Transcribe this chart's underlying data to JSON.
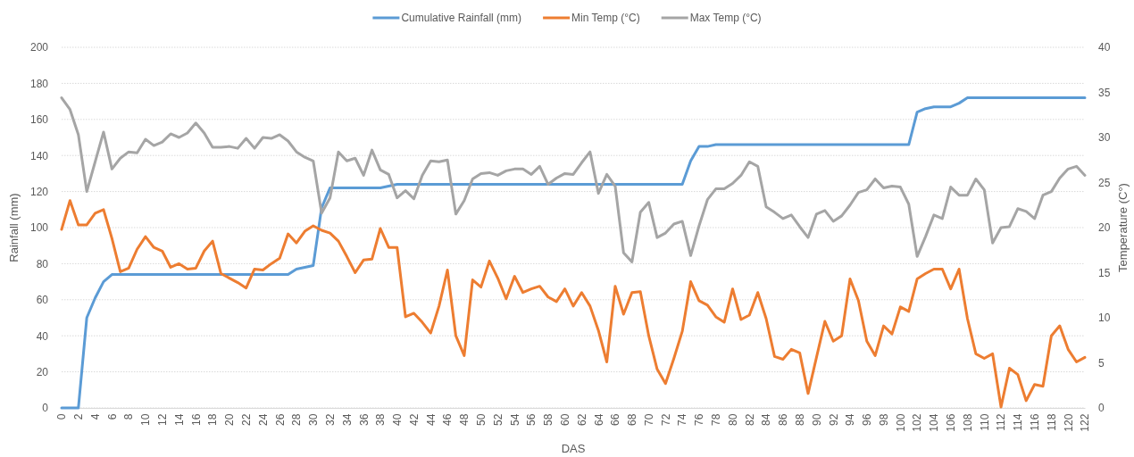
{
  "chart_data": {
    "type": "line",
    "xlabel": "DAS",
    "ylabel": "Rainfall (mm)",
    "y2label": "Temperature (C°)",
    "x": [
      0,
      1,
      2,
      3,
      4,
      5,
      6,
      7,
      8,
      9,
      10,
      11,
      12,
      13,
      14,
      15,
      16,
      17,
      18,
      19,
      20,
      21,
      22,
      23,
      24,
      25,
      26,
      27,
      28,
      29,
      30,
      31,
      32,
      33,
      34,
      35,
      36,
      37,
      38,
      39,
      40,
      41,
      42,
      43,
      44,
      45,
      46,
      47,
      48,
      49,
      50,
      51,
      52,
      53,
      54,
      55,
      56,
      57,
      58,
      59,
      60,
      61,
      62,
      63,
      64,
      65,
      66,
      67,
      68,
      69,
      70,
      71,
      72,
      73,
      74,
      75,
      76,
      77,
      78,
      79,
      80,
      81,
      82,
      83,
      84,
      85,
      86,
      87,
      88,
      89,
      90,
      91,
      92,
      93,
      94,
      95,
      96,
      97,
      98,
      99,
      100,
      101,
      102,
      103,
      104,
      105,
      106,
      107,
      108,
      109,
      110,
      111,
      112,
      113,
      114,
      115,
      116,
      117,
      118,
      119,
      120,
      121,
      122
    ],
    "xlim": [
      0,
      122
    ],
    "xticks": [
      0,
      2,
      4,
      6,
      8,
      10,
      12,
      14,
      16,
      18,
      20,
      22,
      24,
      26,
      28,
      30,
      32,
      34,
      36,
      38,
      40,
      42,
      44,
      46,
      48,
      50,
      52,
      54,
      56,
      58,
      60,
      62,
      64,
      66,
      68,
      70,
      72,
      74,
      76,
      78,
      80,
      82,
      84,
      86,
      88,
      90,
      92,
      94,
      96,
      98,
      100,
      102,
      104,
      106,
      108,
      110,
      112,
      114,
      116,
      118,
      120,
      122
    ],
    "ylim": [
      0,
      200
    ],
    "yticks": [
      0,
      20,
      40,
      60,
      80,
      100,
      120,
      140,
      160,
      180,
      200
    ],
    "y2lim": [
      0,
      40
    ],
    "y2ticks": [
      0,
      5,
      10,
      15,
      20,
      25,
      30,
      35,
      40
    ],
    "grid": "y",
    "legend": "top",
    "marker": "none",
    "line_style": "solid",
    "series": [
      {
        "name": "Cumulative Rainfall (mm)",
        "color": "#5b9bd5",
        "values": [
          0,
          0,
          0,
          50,
          61,
          70,
          74,
          74,
          74,
          74,
          74,
          74,
          74,
          74,
          74,
          74,
          74,
          74,
          74,
          74,
          74,
          74,
          74,
          74,
          74,
          74,
          74,
          74,
          77,
          78,
          79,
          111,
          122,
          122,
          122,
          122,
          122,
          122,
          122,
          123,
          124,
          124,
          124,
          124,
          124,
          124,
          124,
          124,
          124,
          124,
          124,
          124,
          124,
          124,
          124,
          124,
          124,
          124,
          124,
          124,
          124,
          124,
          124,
          124,
          124,
          124,
          124,
          124,
          124,
          124,
          124,
          124,
          124,
          124,
          124,
          137,
          145,
          145,
          146,
          146,
          146,
          146,
          146,
          146,
          146,
          146,
          146,
          146,
          146,
          146,
          146,
          146,
          146,
          146,
          146,
          146,
          146,
          146,
          146,
          146,
          146,
          146,
          164,
          166,
          167,
          167,
          167,
          169,
          172,
          172,
          172,
          172,
          172,
          172,
          172,
          172,
          172,
          172,
          172,
          172,
          172,
          172,
          172
        ]
      },
      {
        "name": "Min Temp (°C)",
        "color": "#ed7d31",
        "axis": "y2",
        "values": [
          19.8,
          23.0,
          20.3,
          20.3,
          21.6,
          22.0,
          18.8,
          15.1,
          15.5,
          17.6,
          19.0,
          17.8,
          17.4,
          15.6,
          16.0,
          15.4,
          15.5,
          17.4,
          18.5,
          14.9,
          14.4,
          13.9,
          13.3,
          15.4,
          15.3,
          16.0,
          16.6,
          19.3,
          18.3,
          19.6,
          20.2,
          19.7,
          19.4,
          18.5,
          16.8,
          15.0,
          16.4,
          16.5,
          19.9,
          17.8,
          17.8,
          10.1,
          10.5,
          9.5,
          8.3,
          11.3,
          15.3,
          8.0,
          5.8,
          14.2,
          13.4,
          16.3,
          14.4,
          12.1,
          14.6,
          12.8,
          13.2,
          13.5,
          12.3,
          11.8,
          13.2,
          11.3,
          12.8,
          11.3,
          8.6,
          5.1,
          13.5,
          10.4,
          12.8,
          12.9,
          8.0,
          4.3,
          2.7,
          5.5,
          8.5,
          14.0,
          11.9,
          11.4,
          10.1,
          9.5,
          13.2,
          9.8,
          10.3,
          12.8,
          9.9,
          5.7,
          5.4,
          6.5,
          6.1,
          1.6,
          5.6,
          9.6,
          7.4,
          8.0,
          14.3,
          11.9,
          7.4,
          5.8,
          9.1,
          8.2,
          11.2,
          10.7,
          14.3,
          14.9,
          15.4,
          15.4,
          13.2,
          15.4,
          9.9,
          6.0,
          5.5,
          6.0,
          0.1,
          4.4,
          3.7,
          0.8,
          2.6,
          2.4,
          8.0,
          9.1,
          6.5,
          5.1,
          5.6
        ]
      },
      {
        "name": "Max Temp (°C)",
        "color": "#a5a5a5",
        "axis": "y2",
        "values": [
          34.4,
          33.1,
          30.3,
          24.0,
          27.3,
          30.6,
          26.5,
          27.7,
          28.4,
          28.3,
          29.8,
          29.1,
          29.5,
          30.4,
          30.0,
          30.5,
          31.6,
          30.5,
          28.9,
          28.9,
          29.0,
          28.8,
          29.9,
          28.8,
          30.0,
          29.9,
          30.3,
          29.6,
          28.4,
          27.8,
          27.4,
          21.6,
          23.3,
          28.4,
          27.4,
          27.7,
          25.8,
          28.6,
          26.4,
          25.9,
          23.3,
          24.1,
          23.2,
          25.8,
          27.4,
          27.3,
          27.5,
          21.5,
          23.0,
          25.4,
          26.0,
          26.1,
          25.8,
          26.3,
          26.5,
          26.5,
          25.9,
          26.8,
          24.8,
          25.5,
          26.0,
          25.9,
          27.2,
          28.4,
          23.8,
          25.9,
          24.6,
          17.2,
          16.2,
          21.7,
          22.8,
          18.9,
          19.4,
          20.4,
          20.7,
          16.9,
          20.2,
          23.1,
          24.3,
          24.3,
          24.9,
          25.8,
          27.3,
          26.8,
          22.3,
          21.7,
          21.0,
          21.4,
          20.1,
          18.9,
          21.5,
          21.9,
          20.7,
          21.3,
          22.5,
          23.9,
          24.2,
          25.4,
          24.4,
          24.6,
          24.5,
          22.6,
          16.8,
          19.0,
          21.4,
          21.0,
          24.5,
          23.6,
          23.6,
          25.4,
          24.2,
          18.3,
          20.0,
          20.1,
          22.1,
          21.8,
          21.0,
          23.6,
          24.0,
          25.5,
          26.5,
          26.8,
          25.8
        ]
      }
    ]
  }
}
